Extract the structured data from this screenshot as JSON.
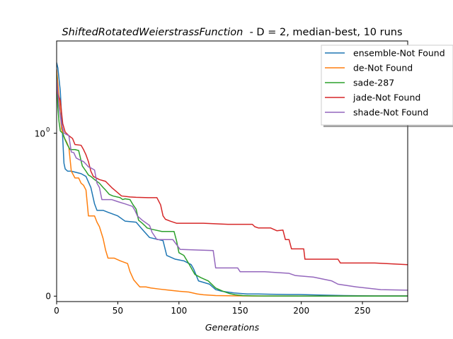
{
  "chart_data": {
    "type": "line",
    "title_italic": "ShiftedRotatedWeierstrassFunction",
    "title_rest": "  - D = 2, median-best, 10 runs",
    "xlabel": "Generations",
    "ylabel": "",
    "xlim": [
      0,
      287
    ],
    "y_scale": "symlog",
    "y_linthresh": 0.01,
    "ylim": [
      -0.001,
      50
    ],
    "x_ticks": [
      0,
      50,
      100,
      150,
      200,
      250
    ],
    "y_ticks": [
      {
        "value": 0,
        "label": "0"
      },
      {
        "value": 1,
        "label": "10",
        "exp": "0"
      }
    ],
    "grid": false,
    "legend_position": "top-right",
    "series": [
      {
        "name": "ensemble-Not Found",
        "color": "#1f77b4",
        "points": [
          [
            0,
            20
          ],
          [
            1,
            16
          ],
          [
            3,
            6
          ],
          [
            5,
            0.8
          ],
          [
            6,
            0.28
          ],
          [
            7,
            0.22
          ],
          [
            9,
            0.2
          ],
          [
            12,
            0.2
          ],
          [
            16,
            0.19
          ],
          [
            20,
            0.18
          ],
          [
            24,
            0.16
          ],
          [
            28,
            0.1
          ],
          [
            31,
            0.05
          ],
          [
            33,
            0.038
          ],
          [
            38,
            0.038
          ],
          [
            42,
            0.035
          ],
          [
            50,
            0.03
          ],
          [
            56,
            0.024
          ],
          [
            65,
            0.023
          ],
          [
            70,
            0.017
          ],
          [
            76,
            0.012
          ],
          [
            87,
            0.0105
          ],
          [
            90,
            0.0075
          ],
          [
            97,
            0.0068
          ],
          [
            104,
            0.0065
          ],
          [
            110,
            0.0058
          ],
          [
            112,
            0.005
          ],
          [
            116,
            0.0028
          ],
          [
            125,
            0.0022
          ],
          [
            130,
            0.0012
          ],
          [
            135,
            0.0009
          ],
          [
            145,
            0.0006
          ],
          [
            150,
            0.0005
          ],
          [
            156,
            0.0004
          ],
          [
            165,
            0.0004
          ],
          [
            175,
            0.00035
          ],
          [
            190,
            0.0003
          ],
          [
            198,
            0.0003
          ],
          [
            215,
            0.0002
          ],
          [
            235,
            0.0001
          ],
          [
            260,
            5e-05
          ],
          [
            287,
            5e-05
          ]
        ]
      },
      {
        "name": "de-Not Found",
        "color": "#ff7f0e",
        "points": [
          [
            0,
            15
          ],
          [
            2,
            4.5
          ],
          [
            4,
            1.2
          ],
          [
            6,
            0.85
          ],
          [
            8,
            0.7
          ],
          [
            10,
            0.55
          ],
          [
            12,
            0.2
          ],
          [
            15,
            0.15
          ],
          [
            18,
            0.15
          ],
          [
            20,
            0.12
          ],
          [
            22,
            0.11
          ],
          [
            24,
            0.09
          ],
          [
            26,
            0.03
          ],
          [
            31,
            0.03
          ],
          [
            33,
            0.023
          ],
          [
            35,
            0.019
          ],
          [
            38,
            0.0115
          ],
          [
            40,
            0.0085
          ],
          [
            42,
            0.007
          ],
          [
            47,
            0.007
          ],
          [
            52,
            0.0065
          ],
          [
            58,
            0.006
          ],
          [
            60,
            0.0045
          ],
          [
            63,
            0.003
          ],
          [
            68,
            0.0017
          ],
          [
            73,
            0.0017
          ],
          [
            77,
            0.0015
          ],
          [
            84,
            0.0013
          ],
          [
            92,
            0.0011
          ],
          [
            100,
            0.0009
          ],
          [
            108,
            0.00075
          ],
          [
            115,
            0.0004
          ],
          [
            120,
            0.00025
          ],
          [
            130,
            0.0001
          ],
          [
            145,
            5e-05
          ],
          [
            160,
            2e-05
          ],
          [
            287,
            2e-05
          ]
        ]
      },
      {
        "name": "sade-287",
        "color": "#2ca02c",
        "points": [
          [
            0,
            12
          ],
          [
            1,
            3
          ],
          [
            2,
            1.6
          ],
          [
            3,
            1.1
          ],
          [
            5,
            1.0
          ],
          [
            7,
            0.75
          ],
          [
            9,
            0.6
          ],
          [
            11,
            0.5
          ],
          [
            15,
            0.5
          ],
          [
            18,
            0.48
          ],
          [
            21,
            0.25
          ],
          [
            24,
            0.2
          ],
          [
            26,
            0.17
          ],
          [
            28,
            0.16
          ],
          [
            31,
            0.14
          ],
          [
            35,
            0.12
          ],
          [
            38,
            0.1
          ],
          [
            40,
            0.09
          ],
          [
            43,
            0.075
          ],
          [
            46,
            0.07
          ],
          [
            52,
            0.065
          ],
          [
            54,
            0.06
          ],
          [
            56,
            0.062
          ],
          [
            60,
            0.06
          ],
          [
            62,
            0.05
          ],
          [
            65,
            0.04
          ],
          [
            67,
            0.025
          ],
          [
            70,
            0.022
          ],
          [
            72,
            0.02
          ],
          [
            74,
            0.018
          ],
          [
            78,
            0.017
          ],
          [
            86,
            0.0155
          ],
          [
            96,
            0.0155
          ],
          [
            98,
            0.0105
          ],
          [
            100,
            0.008
          ],
          [
            104,
            0.0075
          ],
          [
            108,
            0.006
          ],
          [
            113,
            0.004
          ],
          [
            118,
            0.0034
          ],
          [
            124,
            0.0028
          ],
          [
            130,
            0.0015
          ],
          [
            136,
            0.0009
          ],
          [
            141,
            0.0005
          ],
          [
            146,
            0.00025
          ],
          [
            152,
            0.0001
          ],
          [
            160,
            5e-05
          ],
          [
            170,
            2e-05
          ],
          [
            200,
            1e-05
          ],
          [
            287,
            1e-05
          ]
        ]
      },
      {
        "name": "jade-Not Found",
        "color": "#d62728",
        "points": [
          [
            0,
            6
          ],
          [
            3,
            4
          ],
          [
            5,
            1.5
          ],
          [
            7,
            1.05
          ],
          [
            10,
            0.9
          ],
          [
            13,
            0.8
          ],
          [
            15,
            0.62
          ],
          [
            20,
            0.6
          ],
          [
            22,
            0.5
          ],
          [
            24,
            0.4
          ],
          [
            26,
            0.3
          ],
          [
            28,
            0.2
          ],
          [
            30,
            0.16
          ],
          [
            35,
            0.14
          ],
          [
            40,
            0.13
          ],
          [
            45,
            0.1
          ],
          [
            50,
            0.08
          ],
          [
            53,
            0.07
          ],
          [
            60,
            0.067
          ],
          [
            65,
            0.066
          ],
          [
            75,
            0.065
          ],
          [
            82,
            0.065
          ],
          [
            85,
            0.048
          ],
          [
            87,
            0.03
          ],
          [
            89,
            0.026
          ],
          [
            93,
            0.024
          ],
          [
            98,
            0.022
          ],
          [
            105,
            0.022
          ],
          [
            120,
            0.022
          ],
          [
            140,
            0.021
          ],
          [
            160,
            0.021
          ],
          [
            162,
            0.019
          ],
          [
            165,
            0.018
          ],
          [
            175,
            0.018
          ],
          [
            180,
            0.016
          ],
          [
            185,
            0.0165
          ],
          [
            187,
            0.011
          ],
          [
            190,
            0.011
          ],
          [
            192,
            0.0087
          ],
          [
            196,
            0.0087
          ],
          [
            202,
            0.0087
          ],
          [
            203,
            0.0068
          ],
          [
            210,
            0.0068
          ],
          [
            230,
            0.0068
          ],
          [
            232,
            0.0061
          ],
          [
            260,
            0.0061
          ],
          [
            287,
            0.0058
          ]
        ]
      },
      {
        "name": "shade-Not Found",
        "color": "#9467bd",
        "points": [
          [
            0,
            10
          ],
          [
            2,
            3
          ],
          [
            4,
            1.5
          ],
          [
            6,
            1.0
          ],
          [
            8,
            0.95
          ],
          [
            10,
            0.9
          ],
          [
            12,
            0.45
          ],
          [
            14,
            0.44
          ],
          [
            16,
            0.35
          ],
          [
            18,
            0.33
          ],
          [
            22,
            0.3
          ],
          [
            24,
            0.27
          ],
          [
            26,
            0.24
          ],
          [
            28,
            0.23
          ],
          [
            31,
            0.21
          ],
          [
            33,
            0.12
          ],
          [
            35,
            0.1
          ],
          [
            37,
            0.06
          ],
          [
            45,
            0.06
          ],
          [
            50,
            0.055
          ],
          [
            56,
            0.05
          ],
          [
            62,
            0.045
          ],
          [
            64,
            0.038
          ],
          [
            66,
            0.03
          ],
          [
            70,
            0.025
          ],
          [
            76,
            0.02
          ],
          [
            78,
            0.015
          ],
          [
            82,
            0.011
          ],
          [
            88,
            0.011
          ],
          [
            95,
            0.011
          ],
          [
            101,
            0.0086
          ],
          [
            115,
            0.0085
          ],
          [
            128,
            0.0084
          ],
          [
            130,
            0.0052
          ],
          [
            148,
            0.0052
          ],
          [
            150,
            0.0045
          ],
          [
            170,
            0.0045
          ],
          [
            190,
            0.0042
          ],
          [
            195,
            0.0038
          ],
          [
            210,
            0.0035
          ],
          [
            225,
            0.0028
          ],
          [
            230,
            0.0022
          ],
          [
            245,
            0.0017
          ],
          [
            265,
            0.0012
          ],
          [
            287,
            0.0011
          ]
        ]
      }
    ]
  }
}
